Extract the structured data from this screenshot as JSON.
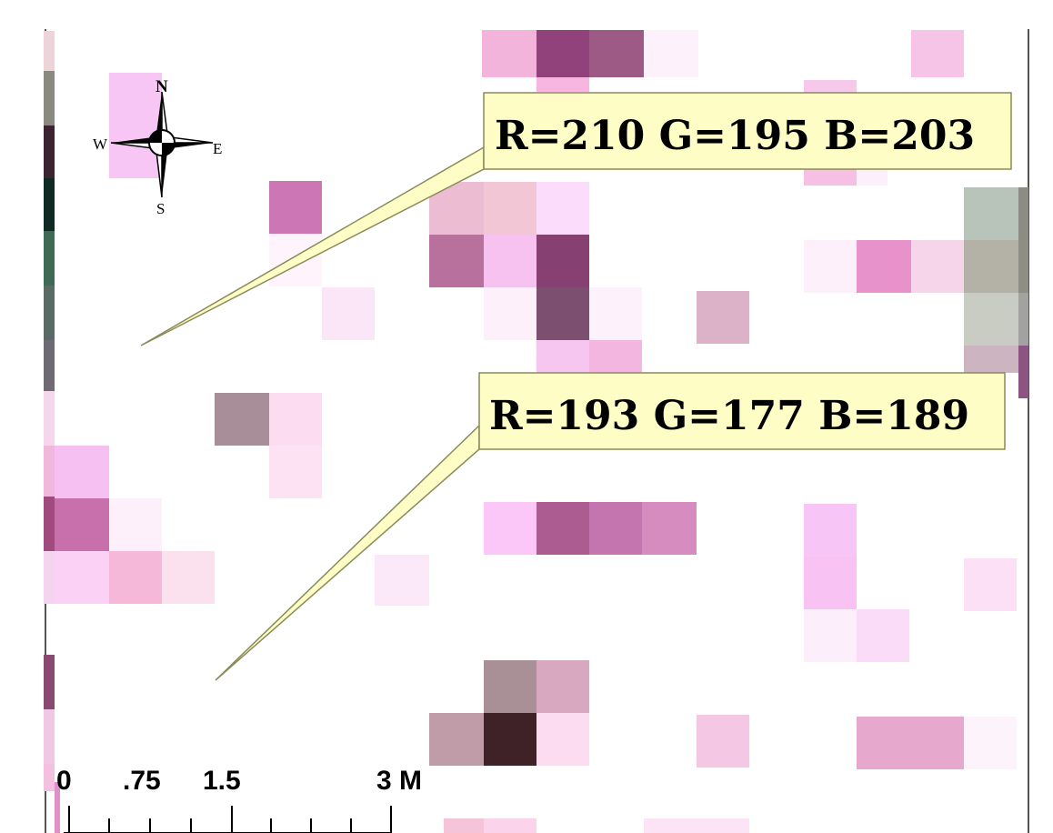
{
  "compass": {
    "north": "N",
    "south": "S",
    "east": "E",
    "west": "W"
  },
  "callouts": [
    {
      "text": "R=210 G=195 B=203"
    },
    {
      "text": "R=193 G=177 B=189"
    }
  ],
  "scale_bar": {
    "labels": [
      "0",
      ".75",
      "1.5",
      "3 M"
    ]
  },
  "colors": {
    "callout_fill": "#fdfdc5",
    "callout_stroke": "#8a8a5a",
    "frame": "#555555"
  },
  "icons": [
    "compass-rose-icon"
  ]
}
